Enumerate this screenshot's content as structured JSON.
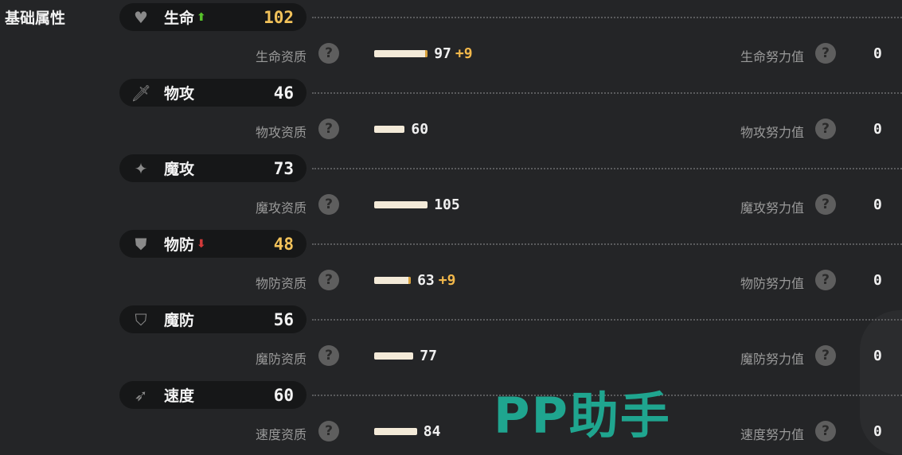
{
  "section_title": "基础属性",
  "stats": [
    {
      "name": "生命",
      "icon": "heart-icon",
      "value": "102",
      "value_color": "#f2c25a",
      "arrow": "up",
      "quality_label": "生命资质",
      "quality": 97,
      "bonus": "+9",
      "bonus_value": 9,
      "ev_label": "生命努力值",
      "ev": "0"
    },
    {
      "name": "物攻",
      "icon": "sword-icon",
      "value": "46",
      "value_color": "#f3f3f3",
      "arrow": "",
      "quality_label": "物攻资质",
      "quality": 60,
      "bonus": "",
      "bonus_value": 0,
      "ev_label": "物攻努力值",
      "ev": "0"
    },
    {
      "name": "魔攻",
      "icon": "magic-wand-icon",
      "value": "73",
      "value_color": "#f3f3f3",
      "arrow": "",
      "quality_label": "魔攻资质",
      "quality": 105,
      "bonus": "",
      "bonus_value": 0,
      "ev_label": "魔攻努力值",
      "ev": "0"
    },
    {
      "name": "物防",
      "icon": "shield-icon",
      "value": "48",
      "value_color": "#f2c25a",
      "arrow": "down",
      "quality_label": "物防资质",
      "quality": 63,
      "bonus": "+9",
      "bonus_value": 9,
      "ev_label": "物防努力值",
      "ev": "0"
    },
    {
      "name": "魔防",
      "icon": "magic-shield-icon",
      "value": "56",
      "value_color": "#f3f3f3",
      "arrow": "",
      "quality_label": "魔防资质",
      "quality": 77,
      "bonus": "",
      "bonus_value": 0,
      "ev_label": "魔防努力值",
      "ev": "0"
    },
    {
      "name": "速度",
      "icon": "wing-boot-icon",
      "value": "60",
      "value_color": "#f3f3f3",
      "arrow": "",
      "quality_label": "速度资质",
      "quality": 84,
      "bonus": "",
      "bonus_value": 0,
      "ev_label": "速度努力值",
      "ev": "0"
    }
  ],
  "arrows": {
    "up": "⬆",
    "down": "⬇"
  },
  "arrow_colors": {
    "up": "#57c22a",
    "down": "#d23a3a"
  },
  "help_glyph": "?",
  "watermark": "PP助手"
}
